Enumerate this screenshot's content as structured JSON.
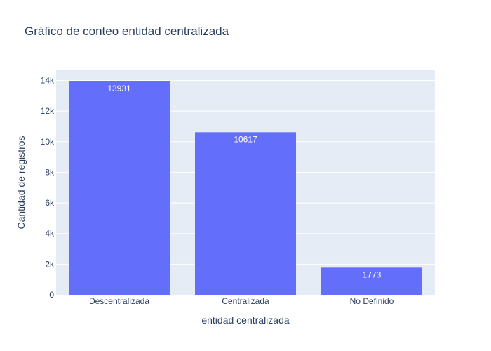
{
  "chart_data": {
    "type": "bar",
    "title": "Gráfico de conteo entidad centralizada",
    "xlabel": "entidad centralizada",
    "ylabel": "Cantidad de registros",
    "categories": [
      "Descentralizada",
      "Centralizada",
      "No Definido"
    ],
    "values": [
      13931,
      10617,
      1773
    ],
    "data_labels": [
      "13931",
      "10617",
      "1773"
    ],
    "ylim": [
      0,
      14664
    ],
    "y_ticks": [
      0,
      2000,
      4000,
      6000,
      8000,
      10000,
      12000,
      14000
    ],
    "y_tick_labels": [
      "0",
      "2k",
      "4k",
      "6k",
      "8k",
      "10k",
      "12k",
      "14k"
    ],
    "grid": true,
    "colors": {
      "bar": "#636efa",
      "plot_bg": "#e5ecf6",
      "grid": "#ffffff",
      "text": "#2a3f5f"
    }
  }
}
